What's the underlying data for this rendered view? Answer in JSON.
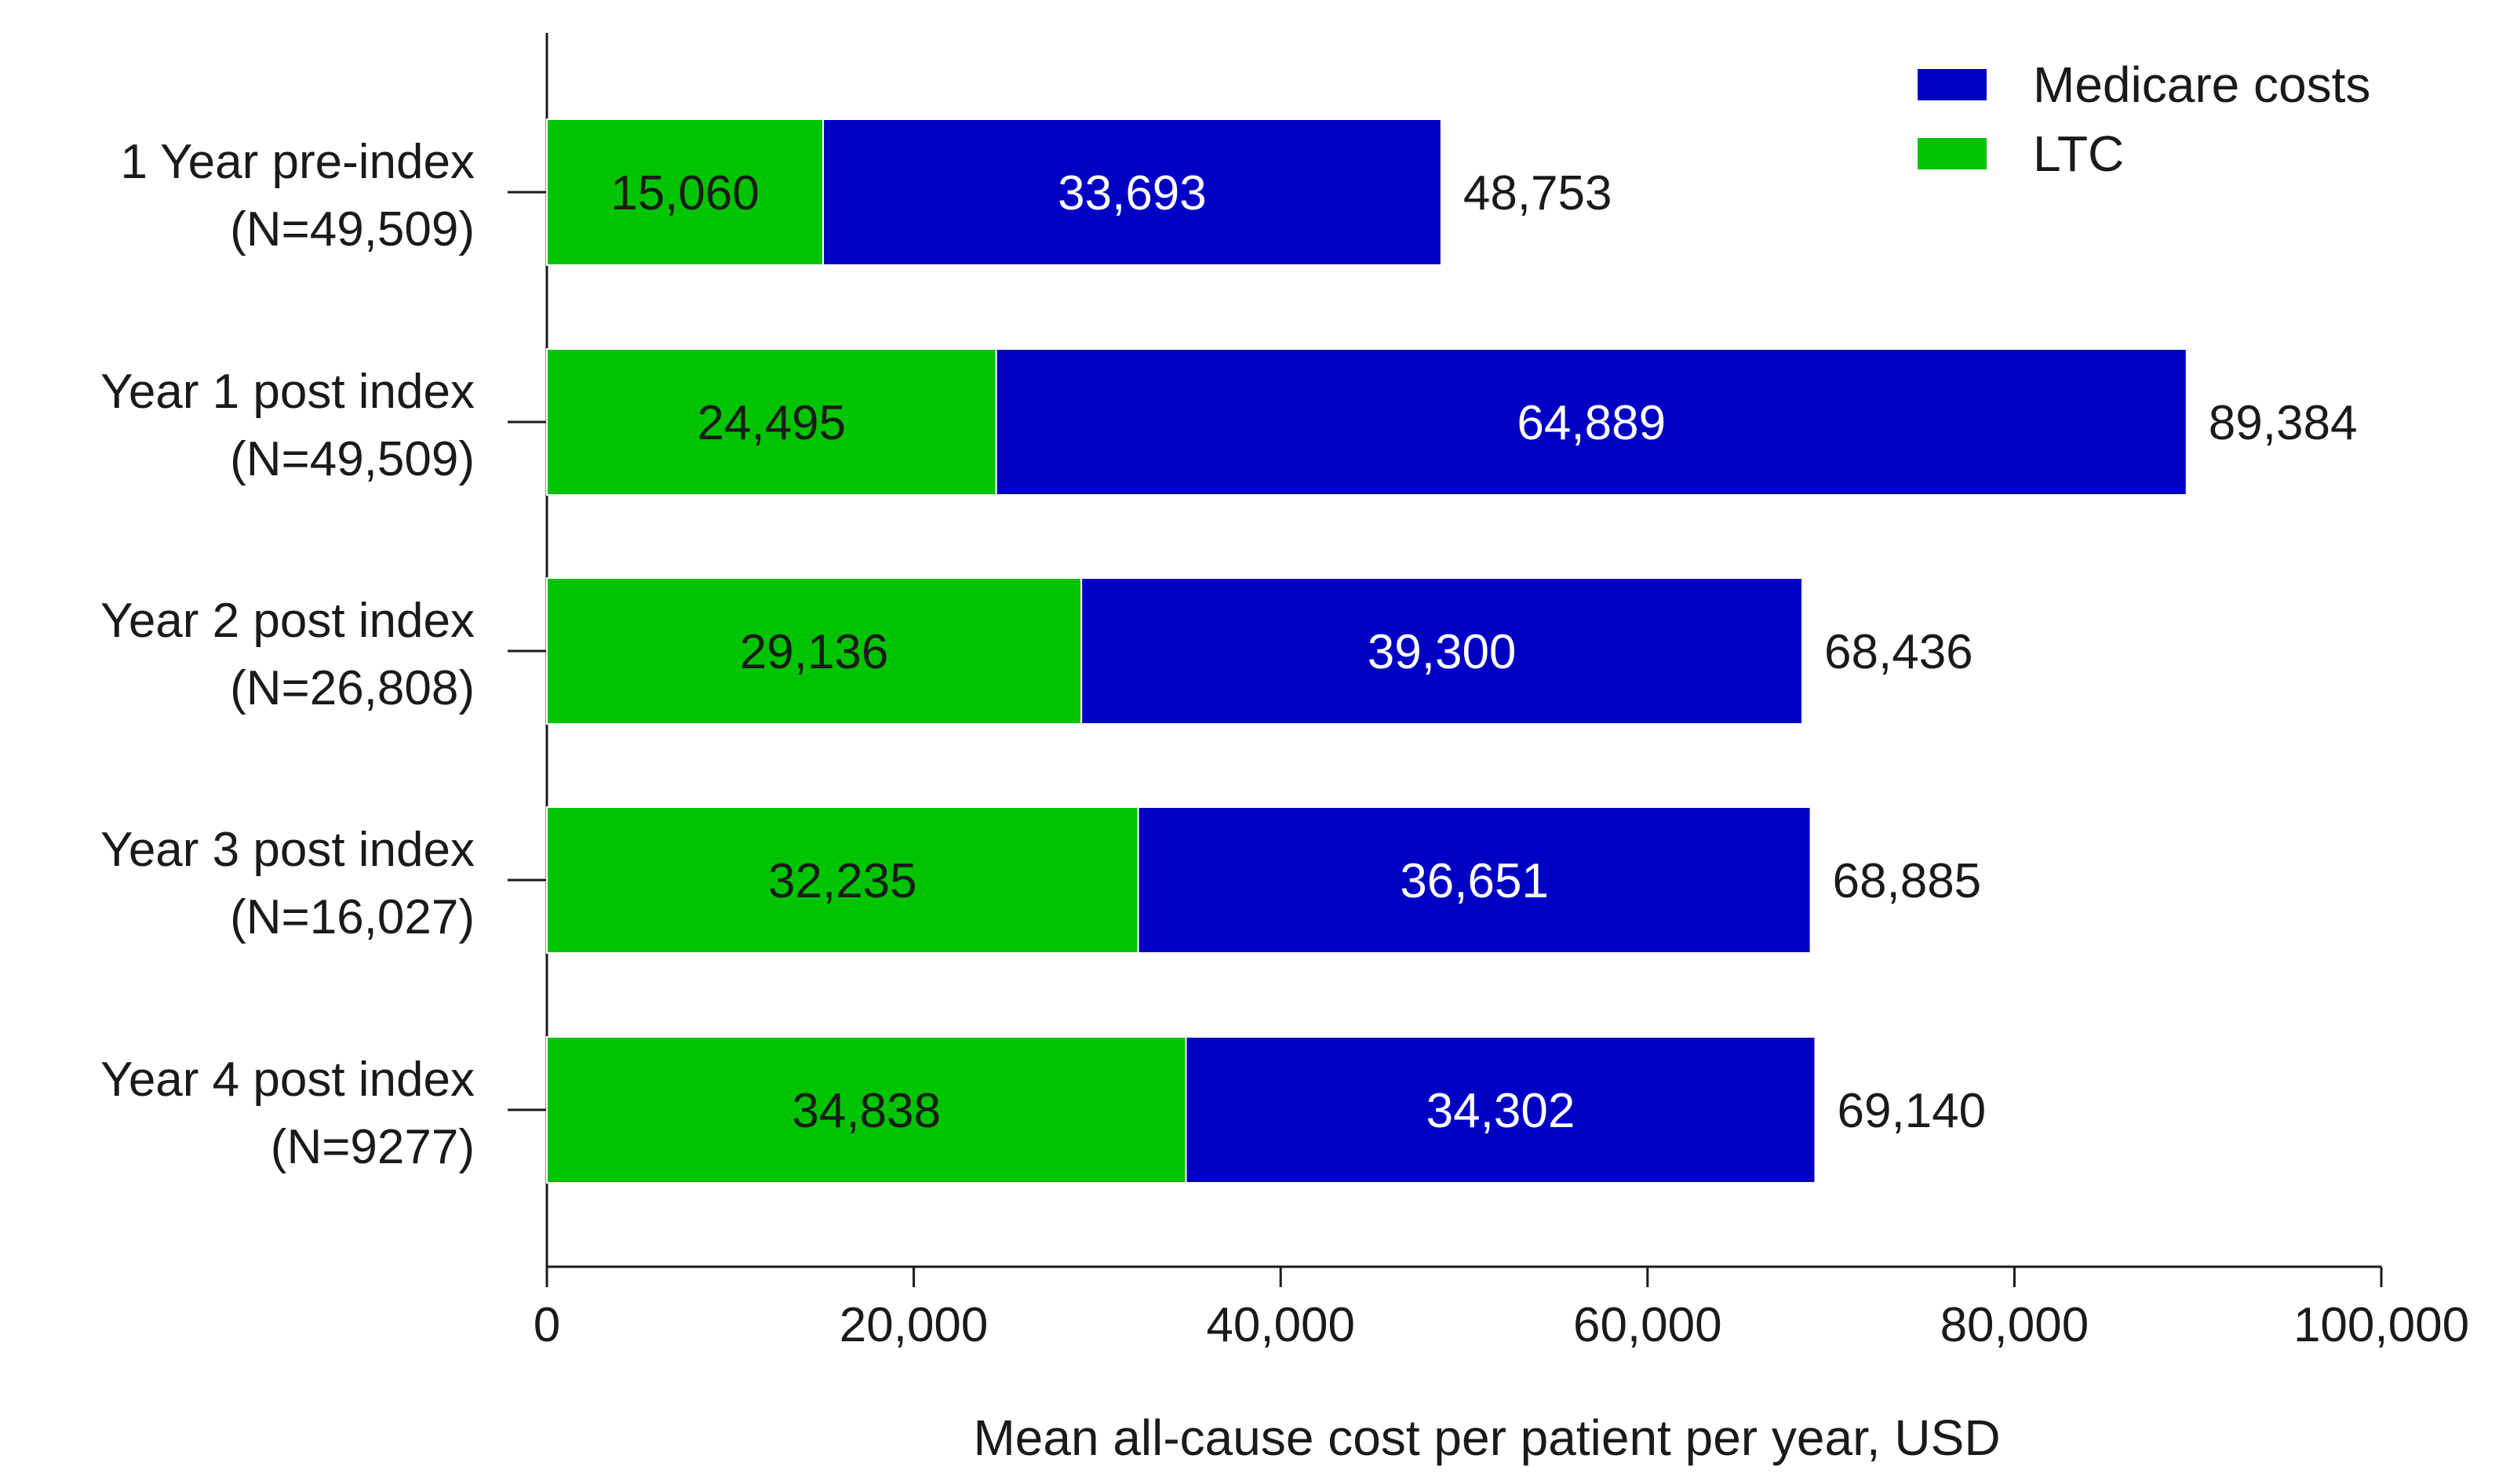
{
  "chart_data": {
    "type": "bar",
    "orientation": "horizontal",
    "stacked": true,
    "title": "",
    "xlabel": "Mean all-cause cost per patient per year, USD",
    "ylabel": "",
    "xlim": [
      0,
      100000
    ],
    "xticks": [
      0,
      20000,
      40000,
      60000,
      80000,
      100000
    ],
    "xtick_labels": [
      "0",
      "20,000",
      "40,000",
      "60,000",
      "80,000",
      "100,000"
    ],
    "grid": false,
    "legend_position": "top-right",
    "categories": [
      {
        "line1": "1 Year pre-index",
        "line2": "(N=49,509)"
      },
      {
        "line1": "Year 1 post index",
        "line2": "(N=49,509)"
      },
      {
        "line1": "Year 2 post index",
        "line2": "(N=26,808)"
      },
      {
        "line1": "Year 3 post index",
        "line2": "(N=16,027)"
      },
      {
        "line1": "Year 4 post index",
        "line2": "(N=9277)"
      }
    ],
    "series": [
      {
        "name": "LTC",
        "color": "#00c400",
        "label_color": "#1a1a1a",
        "values": [
          15060,
          24495,
          29136,
          32235,
          34838
        ],
        "value_labels": [
          "15,060",
          "24,495",
          "29,136",
          "32,235",
          "34,838"
        ]
      },
      {
        "name": "Medicare costs",
        "color": "#0000c4",
        "label_color": "#ffffff",
        "values": [
          33693,
          64889,
          39300,
          36651,
          34302
        ],
        "value_labels": [
          "33,693",
          "64,889",
          "39,300",
          "36,651",
          "34,302"
        ]
      }
    ],
    "totals": [
      48753,
      89384,
      68436,
      68885,
      69140
    ],
    "total_labels": [
      "48,753",
      "89,384",
      "68,436",
      "68,885",
      "69,140"
    ],
    "legend_order": [
      "Medicare costs",
      "LTC"
    ]
  }
}
